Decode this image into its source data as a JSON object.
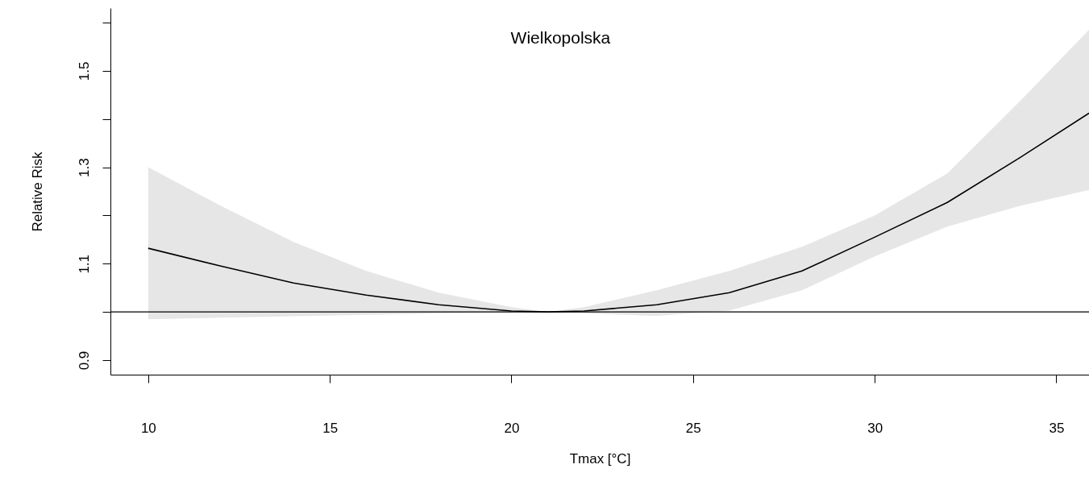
{
  "chart_data": {
    "type": "line",
    "title": "Wielkopolska",
    "xlabel": "Tmax [°C]",
    "ylabel": "Relative Risk",
    "x": [
      10,
      12,
      14,
      16,
      18,
      20,
      21,
      22,
      24,
      26,
      28,
      30,
      32,
      34,
      35.9
    ],
    "series": [
      {
        "color": "#000000",
        "values": [
          1.132,
          1.095,
          1.06,
          1.035,
          1.015,
          1.002,
          1.0,
          1.002,
          1.015,
          1.04,
          1.085,
          1.155,
          1.227,
          1.32,
          1.412
        ],
        "lower": [
          0.985,
          0.988,
          0.991,
          0.994,
          0.997,
          0.999,
          1.0,
          0.997,
          0.992,
          1.003,
          1.045,
          1.115,
          1.177,
          1.22,
          1.253
        ],
        "upper": [
          1.3,
          1.22,
          1.145,
          1.085,
          1.04,
          1.01,
          1.0,
          1.01,
          1.045,
          1.085,
          1.135,
          1.2,
          1.287,
          1.437,
          1.585
        ]
      }
    ],
    "xlim": [
      8.96,
      35.9
    ],
    "ylim": [
      0.87,
      1.63
    ],
    "xticks": [
      10,
      15,
      20,
      25,
      30,
      35
    ],
    "yticks": [
      0.9,
      {
        "value": 1.0,
        "label": null
      },
      1.1,
      {
        "value": 1.2,
        "label": null
      },
      1.3,
      {
        "value": 1.4,
        "label": null
      },
      1.5,
      {
        "value": 1.6,
        "label": null
      }
    ],
    "ref_lines": [
      {
        "axis": "y",
        "value": 1.0,
        "color": "#000000"
      }
    ],
    "grid": false,
    "line_style": "solid",
    "marker": "none"
  }
}
